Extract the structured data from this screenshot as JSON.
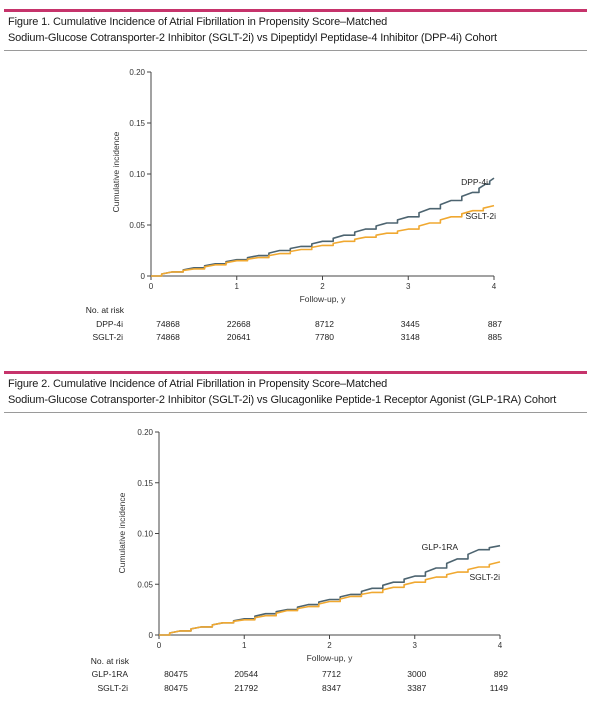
{
  "figures": [
    {
      "title_line1": "Figure 1. Cumulative Incidence of Atrial Fibrillation in Propensity Score–Matched",
      "title_line2": "Sodium-Glucose Cotransporter-2 Inhibitor (SGLT-2i) vs Dipeptidyl Peptidase-4 Inhibitor (DPP-4i) Cohort"
    },
    {
      "title_line1": "Figure 2. Cumulative Incidence of Atrial Fibrillation in Propensity Score–Matched",
      "title_line2": "Sodium-Glucose Cotransporter-2 Inhibitor (SGLT-2i) vs Glucagonlike Peptide-1 Receptor Agonist (GLP-1RA) Cohort"
    }
  ],
  "colors": {
    "accent_rule": "#c6336b",
    "comparator_line": "#4d6470",
    "sglt2_line": "#f0a830",
    "axis": "#444444"
  },
  "chart_data": [
    {
      "type": "line",
      "xlabel": "Follow-up, y",
      "ylabel": "Cumulative incidence",
      "xlim": [
        0,
        4
      ],
      "ylim": [
        0,
        0.2
      ],
      "x_ticks": [
        "0",
        "1",
        "2",
        "3",
        "4"
      ],
      "y_ticks": [
        "0",
        "0.05",
        "0.10",
        "0.15",
        "0.20"
      ],
      "grid": false,
      "series": [
        {
          "name": "DPP-4i",
          "x": [
            0,
            0.25,
            0.5,
            0.75,
            1,
            1.25,
            1.5,
            1.75,
            2,
            2.25,
            2.5,
            2.75,
            3,
            3.25,
            3.5,
            3.75,
            3.9,
            4
          ],
          "y": [
            0,
            0.004,
            0.008,
            0.012,
            0.016,
            0.02,
            0.025,
            0.029,
            0.034,
            0.04,
            0.046,
            0.052,
            0.058,
            0.066,
            0.074,
            0.082,
            0.09,
            0.096
          ]
        },
        {
          "name": "SGLT-2i",
          "x": [
            0,
            0.25,
            0.5,
            0.75,
            1,
            1.25,
            1.5,
            1.75,
            2,
            2.25,
            2.5,
            2.75,
            3,
            3.25,
            3.5,
            3.75,
            4
          ],
          "y": [
            0,
            0.004,
            0.007,
            0.011,
            0.015,
            0.018,
            0.022,
            0.026,
            0.03,
            0.034,
            0.038,
            0.042,
            0.046,
            0.052,
            0.058,
            0.064,
            0.069
          ]
        }
      ],
      "risk_table": {
        "header": "No. at risk",
        "rows": [
          {
            "label": "DPP-4i",
            "values": [
              "74868",
              "22668",
              "8712",
              "3445",
              "887"
            ]
          },
          {
            "label": "SGLT-2i",
            "values": [
              "74868",
              "20641",
              "7780",
              "3148",
              "885"
            ]
          }
        ]
      }
    },
    {
      "type": "line",
      "xlabel": "Follow-up, y",
      "ylabel": "Cumulative incidence",
      "xlim": [
        0,
        4
      ],
      "ylim": [
        0,
        0.2
      ],
      "x_ticks": [
        "0",
        "1",
        "2",
        "3",
        "4"
      ],
      "y_ticks": [
        "0",
        "0.05",
        "0.10",
        "0.15",
        "0.20"
      ],
      "grid": false,
      "series": [
        {
          "name": "GLP-1RA",
          "x": [
            0,
            0.25,
            0.5,
            0.75,
            1,
            1.25,
            1.5,
            1.75,
            2,
            2.25,
            2.5,
            2.75,
            3,
            3.25,
            3.5,
            3.75,
            4
          ],
          "y": [
            0,
            0.004,
            0.008,
            0.012,
            0.016,
            0.021,
            0.025,
            0.03,
            0.035,
            0.04,
            0.046,
            0.052,
            0.058,
            0.066,
            0.075,
            0.084,
            0.088
          ]
        },
        {
          "name": "SGLT-2i",
          "x": [
            0,
            0.25,
            0.5,
            0.75,
            1,
            1.25,
            1.5,
            1.75,
            2,
            2.25,
            2.5,
            2.75,
            3,
            3.25,
            3.5,
            3.75,
            4
          ],
          "y": [
            0,
            0.004,
            0.008,
            0.012,
            0.015,
            0.019,
            0.024,
            0.028,
            0.033,
            0.038,
            0.042,
            0.047,
            0.052,
            0.057,
            0.062,
            0.067,
            0.072
          ]
        }
      ],
      "risk_table": {
        "header": "No. at risk",
        "rows": [
          {
            "label": "GLP-1RA",
            "values": [
              "80475",
              "20544",
              "7712",
              "3000",
              "892"
            ]
          },
          {
            "label": "SGLT-2i",
            "values": [
              "80475",
              "21792",
              "8347",
              "3387",
              "1149"
            ]
          }
        ]
      }
    }
  ]
}
